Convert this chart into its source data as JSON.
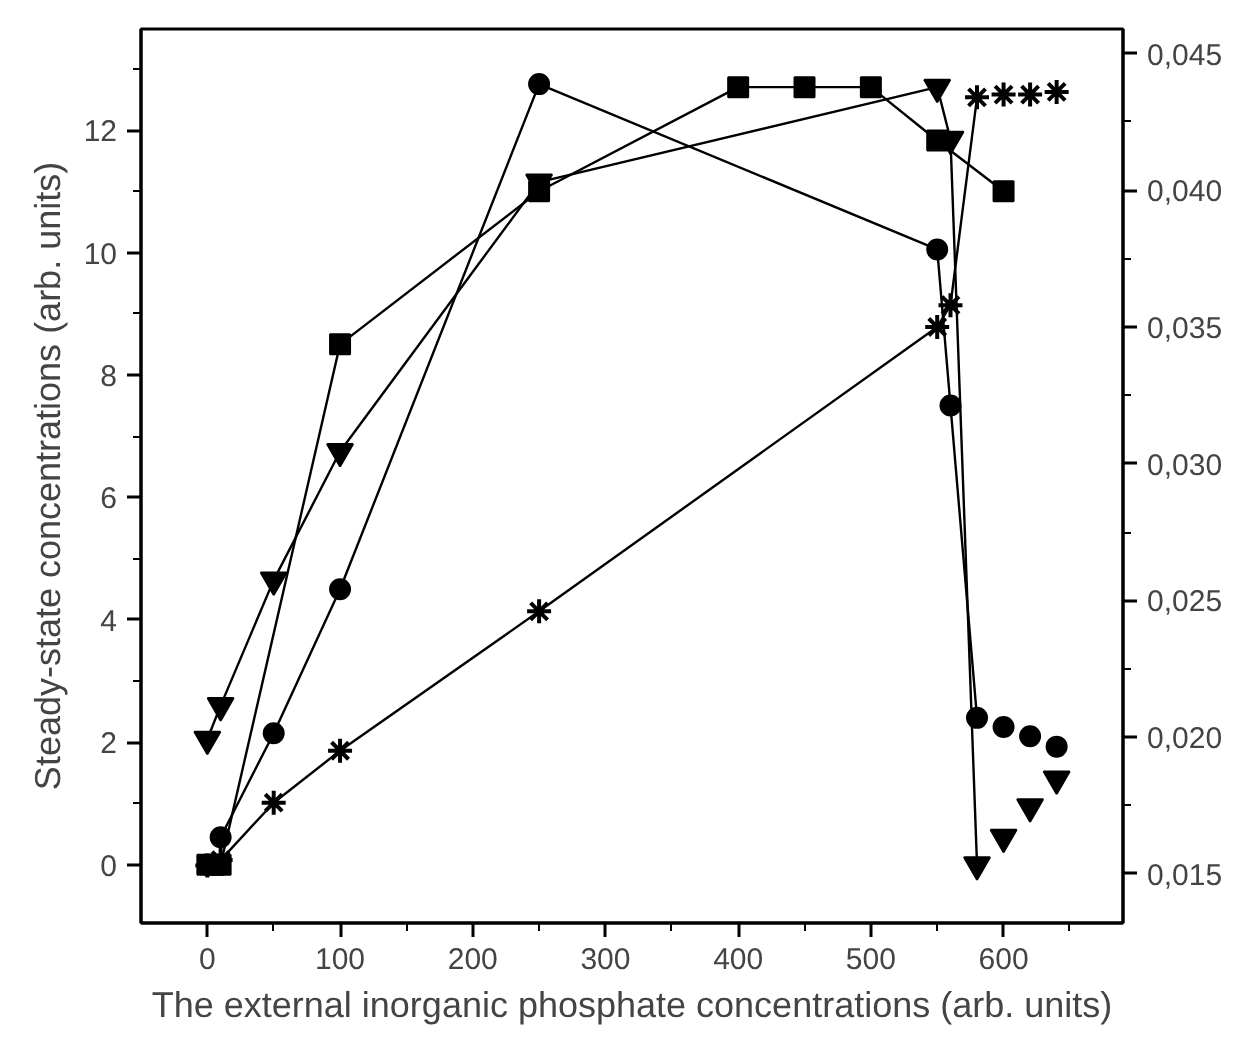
{
  "chart_data": {
    "type": "line",
    "xlabel": "The external inorganic phosphate concentrations (arb. units)",
    "ylabel": "Steady-state concentrations (arb. units)",
    "xlim": [
      -50,
      690
    ],
    "xticks": [
      0,
      100,
      200,
      300,
      400,
      500,
      600
    ],
    "ylim": [
      -0.95,
      13.65
    ],
    "yticks": [
      0,
      2,
      4,
      6,
      8,
      10,
      12
    ],
    "y2lim": [
      0.0132,
      0.0459
    ],
    "y2ticks": [
      {
        "value": 0.015,
        "label": "0,015"
      },
      {
        "value": 0.02,
        "label": "0,020"
      },
      {
        "value": 0.025,
        "label": "0,025"
      },
      {
        "value": 0.03,
        "label": "0,030"
      },
      {
        "value": 0.035,
        "label": "0,035"
      },
      {
        "value": 0.04,
        "label": "0,040"
      },
      {
        "value": 0.045,
        "label": "0,045"
      }
    ],
    "grid": false,
    "line_style": "solid",
    "series": [
      {
        "marker": "square",
        "color": "#000000",
        "x": [
          0,
          5,
          10,
          100,
          250,
          400,
          450,
          500,
          550,
          600
        ],
        "values": [
          0,
          0,
          0,
          8.5,
          11.0,
          12.7,
          12.7,
          12.7,
          11.83,
          11.0
        ]
      },
      {
        "marker": "circle",
        "color": "#000000",
        "x": [
          10,
          50,
          100,
          250,
          550,
          560,
          580
        ],
        "values": [
          0.45,
          2.15,
          4.5,
          12.75,
          10.05,
          7.5,
          2.4
        ]
      },
      {
        "type": "scatter",
        "marker": "circle",
        "color": "#000000",
        "x": [
          600,
          620,
          640
        ],
        "values": [
          2.25,
          2.1,
          1.93
        ]
      },
      {
        "marker": "triangle",
        "color": "#000000",
        "x": [
          0,
          10,
          50,
          100,
          250,
          550,
          560,
          580
        ],
        "values": [
          2.05,
          2.6,
          4.65,
          6.75,
          11.15,
          12.7,
          11.85,
          0.0
        ]
      },
      {
        "type": "scatter",
        "marker": "triangle",
        "color": "#000000",
        "x": [
          600,
          620,
          640
        ],
        "values": [
          0.45,
          0.95,
          1.4
        ]
      },
      {
        "marker": "cross",
        "color": "#000000",
        "axis": "y2",
        "x": [
          0,
          10,
          50,
          100,
          250,
          550,
          560,
          580
        ],
        "values": [
          0.0153,
          0.0155,
          0.0176,
          0.0195,
          0.0246,
          0.035,
          0.0358,
          0.0434
        ]
      },
      {
        "type": "scatter",
        "marker": "cross",
        "color": "#000000",
        "axis": "y2",
        "x": [
          600,
          620,
          640
        ],
        "values": [
          0.0435,
          0.0435,
          0.0436
        ]
      }
    ]
  }
}
